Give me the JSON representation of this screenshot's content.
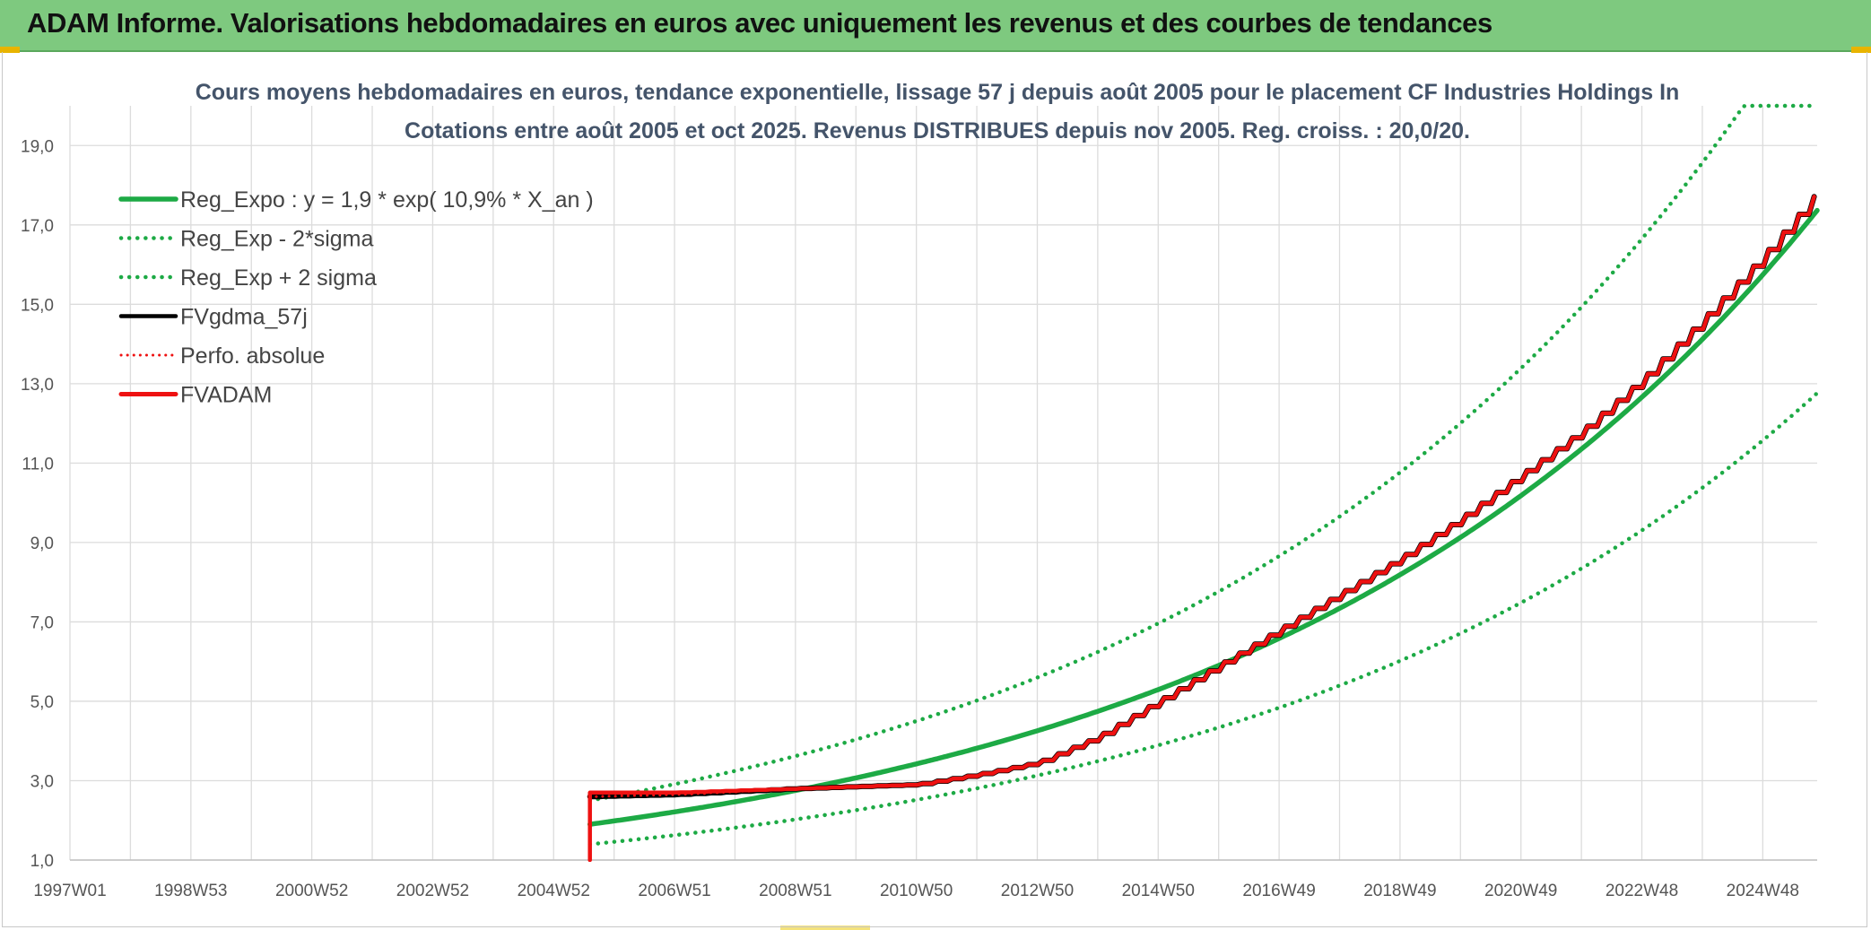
{
  "header": {
    "title": "ADAM Informe. Valorisations hebdomadaires en euros avec uniquement les revenus et des courbes de tendances"
  },
  "colors": {
    "banner": "#7ec97f",
    "green": "#1daa45",
    "red": "#ee1111",
    "black": "#000000",
    "grid": "#dcdcdc"
  },
  "chart_data": {
    "type": "line",
    "title_line1": "Cours moyens hebdomadaires en euros, tendance exponentielle, lissage 57 j depuis août 2005 pour le placement CF Industries Holdings In",
    "title_line2": "Cotations entre août 2005 et oct 2025. Revenus DISTRIBUES depuis nov 2005. Reg. croiss. : 20,0/20.",
    "x_start_year": 1997.0,
    "x_end_year": 2025.9,
    "x_ticks": [
      {
        "label": "1997W01",
        "year": 1997.0
      },
      {
        "label": "1998W53",
        "year": 1999.0
      },
      {
        "label": "2000W52",
        "year": 2001.0
      },
      {
        "label": "2002W52",
        "year": 2003.0
      },
      {
        "label": "2004W52",
        "year": 2005.0
      },
      {
        "label": "2006W51",
        "year": 2007.0
      },
      {
        "label": "2008W51",
        "year": 2009.0
      },
      {
        "label": "2010W50",
        "year": 2011.0
      },
      {
        "label": "2012W50",
        "year": 2013.0
      },
      {
        "label": "2014W50",
        "year": 2015.0
      },
      {
        "label": "2016W49",
        "year": 2017.0
      },
      {
        "label": "2018W49",
        "year": 2019.0
      },
      {
        "label": "2020W49",
        "year": 2021.0
      },
      {
        "label": "2022W48",
        "year": 2023.0
      },
      {
        "label": "2024W48",
        "year": 2025.0
      }
    ],
    "y_ticks": [
      "1,0",
      "3,0",
      "5,0",
      "7,0",
      "9,0",
      "11,0",
      "13,0",
      "15,0",
      "17,0",
      "19,0"
    ],
    "ylim": [
      1.0,
      20.0
    ],
    "regression": {
      "a": 1.9,
      "rate": 0.109,
      "start_year": 2005.6
    },
    "series": [
      {
        "name": "Reg_Expo : y = 1,9 * exp( 10,9% *  X_an )",
        "color": "#1daa45",
        "style": "solid",
        "x": [
          2005.6,
          2007,
          2009,
          2011,
          2013,
          2015,
          2017,
          2019,
          2021,
          2023,
          2025,
          2025.9
        ],
        "y": [
          1.9,
          2.2,
          2.7,
          3.4,
          4.2,
          5.2,
          6.4,
          8.0,
          10.0,
          12.4,
          15.4,
          16.9
        ]
      },
      {
        "name": "Reg_Exp - 2*sigma",
        "color": "#1daa45",
        "style": "dotted",
        "x": [
          2005.6,
          2007,
          2009,
          2011,
          2013,
          2015,
          2017,
          2019,
          2021,
          2023,
          2025,
          2025.9
        ],
        "y": [
          1.4,
          1.65,
          2.05,
          2.5,
          3.15,
          3.9,
          4.8,
          6.0,
          7.5,
          9.3,
          11.5,
          12.6
        ]
      },
      {
        "name": "Reg_Exp + 2 sigma",
        "color": "#1daa45",
        "style": "dotted",
        "x": [
          2005.6,
          2007,
          2009,
          2011,
          2013,
          2015,
          2017,
          2019,
          2021,
          2023,
          2024.5,
          2025.9
        ],
        "y": [
          2.5,
          2.95,
          3.65,
          4.55,
          5.65,
          7.0,
          8.7,
          10.8,
          13.4,
          16.6,
          20.0,
          20.0
        ]
      },
      {
        "name": "FVgdma_57j",
        "color": "#000000",
        "style": "solid",
        "x": [
          2005.6,
          2007,
          2009,
          2011,
          2012,
          2013,
          2014,
          2015,
          2016,
          2017,
          2018,
          2019,
          2020,
          2021,
          2022,
          2023,
          2024,
          2025,
          2025.9
        ],
        "y": [
          2.6,
          2.65,
          2.8,
          2.9,
          3.15,
          3.45,
          4.1,
          5.0,
          5.9,
          6.8,
          7.7,
          8.6,
          9.6,
          10.7,
          11.8,
          13.1,
          14.6,
          16.2,
          17.8
        ]
      },
      {
        "name": "Perfo. absolue",
        "color": "#ee1111",
        "style": "dotted",
        "x": [
          2005.6,
          2007,
          2009,
          2011,
          2012,
          2013,
          2014,
          2015,
          2016,
          2017,
          2018,
          2019,
          2020,
          2021,
          2022,
          2023,
          2024,
          2025,
          2025.9
        ],
        "y": [
          2.6,
          2.65,
          2.8,
          2.9,
          3.15,
          3.45,
          4.1,
          5.0,
          5.9,
          6.8,
          7.7,
          8.6,
          9.6,
          10.7,
          11.8,
          13.1,
          14.6,
          16.2,
          17.8
        ]
      },
      {
        "name": "FVADAM",
        "color": "#ee1111",
        "style": "solid",
        "x": [
          2005.6,
          2005.6,
          2007,
          2009,
          2011,
          2012,
          2013,
          2014,
          2015,
          2016,
          2017,
          2018,
          2019,
          2020,
          2021,
          2022,
          2023,
          2024,
          2025,
          2025.9
        ],
        "y": [
          1.0,
          2.7,
          2.7,
          2.8,
          2.9,
          3.15,
          3.45,
          4.1,
          5.0,
          5.9,
          6.8,
          7.7,
          8.6,
          9.6,
          10.7,
          11.8,
          13.1,
          14.6,
          16.2,
          17.8
        ]
      }
    ]
  }
}
